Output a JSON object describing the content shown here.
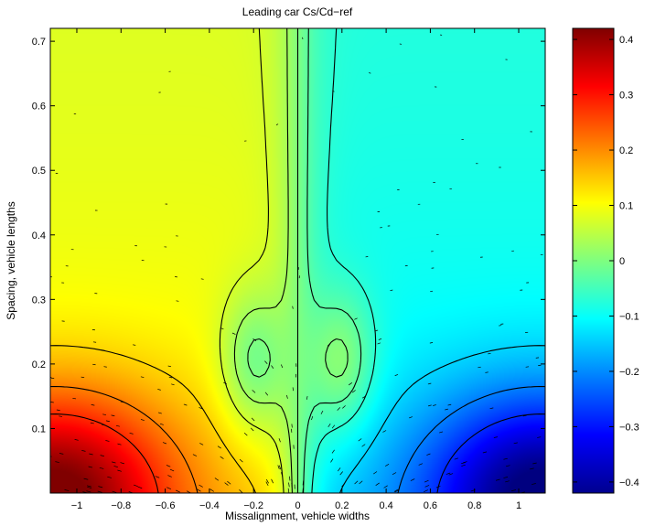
{
  "chart_data": {
    "type": "heatmap",
    "title": "Leading car Cs/Cd−ref",
    "xlabel": "Missalignment, vehicle widths",
    "ylabel": "Spacing, vehicle lengths",
    "xlim": [
      -1.12,
      1.12
    ],
    "ylim": [
      0.0,
      0.72
    ],
    "x_ticks": [
      -1,
      -0.8,
      -0.6,
      -0.4,
      -0.2,
      0,
      0.2,
      0.4,
      0.6,
      0.8,
      1
    ],
    "x_tick_labels": [
      "−1",
      "−0.8",
      "−0.6",
      "−0.4",
      "−0.2",
      "0",
      "0.2",
      "0.4",
      "0.6",
      "0.8",
      "1"
    ],
    "y_ticks": [
      0.1,
      0.2,
      0.3,
      0.4,
      0.5,
      0.6,
      0.7
    ],
    "y_tick_labels": [
      "0.1",
      "0.2",
      "0.3",
      "0.4",
      "0.5",
      "0.6",
      "0.7"
    ],
    "colorbar": {
      "colormap": "jet",
      "clim": [
        -0.42,
        0.42
      ],
      "ticks": [
        -0.4,
        -0.3,
        -0.2,
        -0.1,
        0,
        0.1,
        0.2,
        0.3,
        0.4
      ],
      "tick_labels": [
        "−0.4",
        "−0.3",
        "−0.2",
        "−0.1",
        "0",
        "0.1",
        "0.2",
        "0.3",
        "0.4"
      ]
    },
    "grid": false,
    "legend": "none",
    "colors": {
      "jet": [
        "#00008f",
        "#0000ff",
        "#00ffff",
        "#ffff00",
        "#ff0000",
        "#800000"
      ],
      "contour": "#000000",
      "axes": "#000000"
    }
  }
}
